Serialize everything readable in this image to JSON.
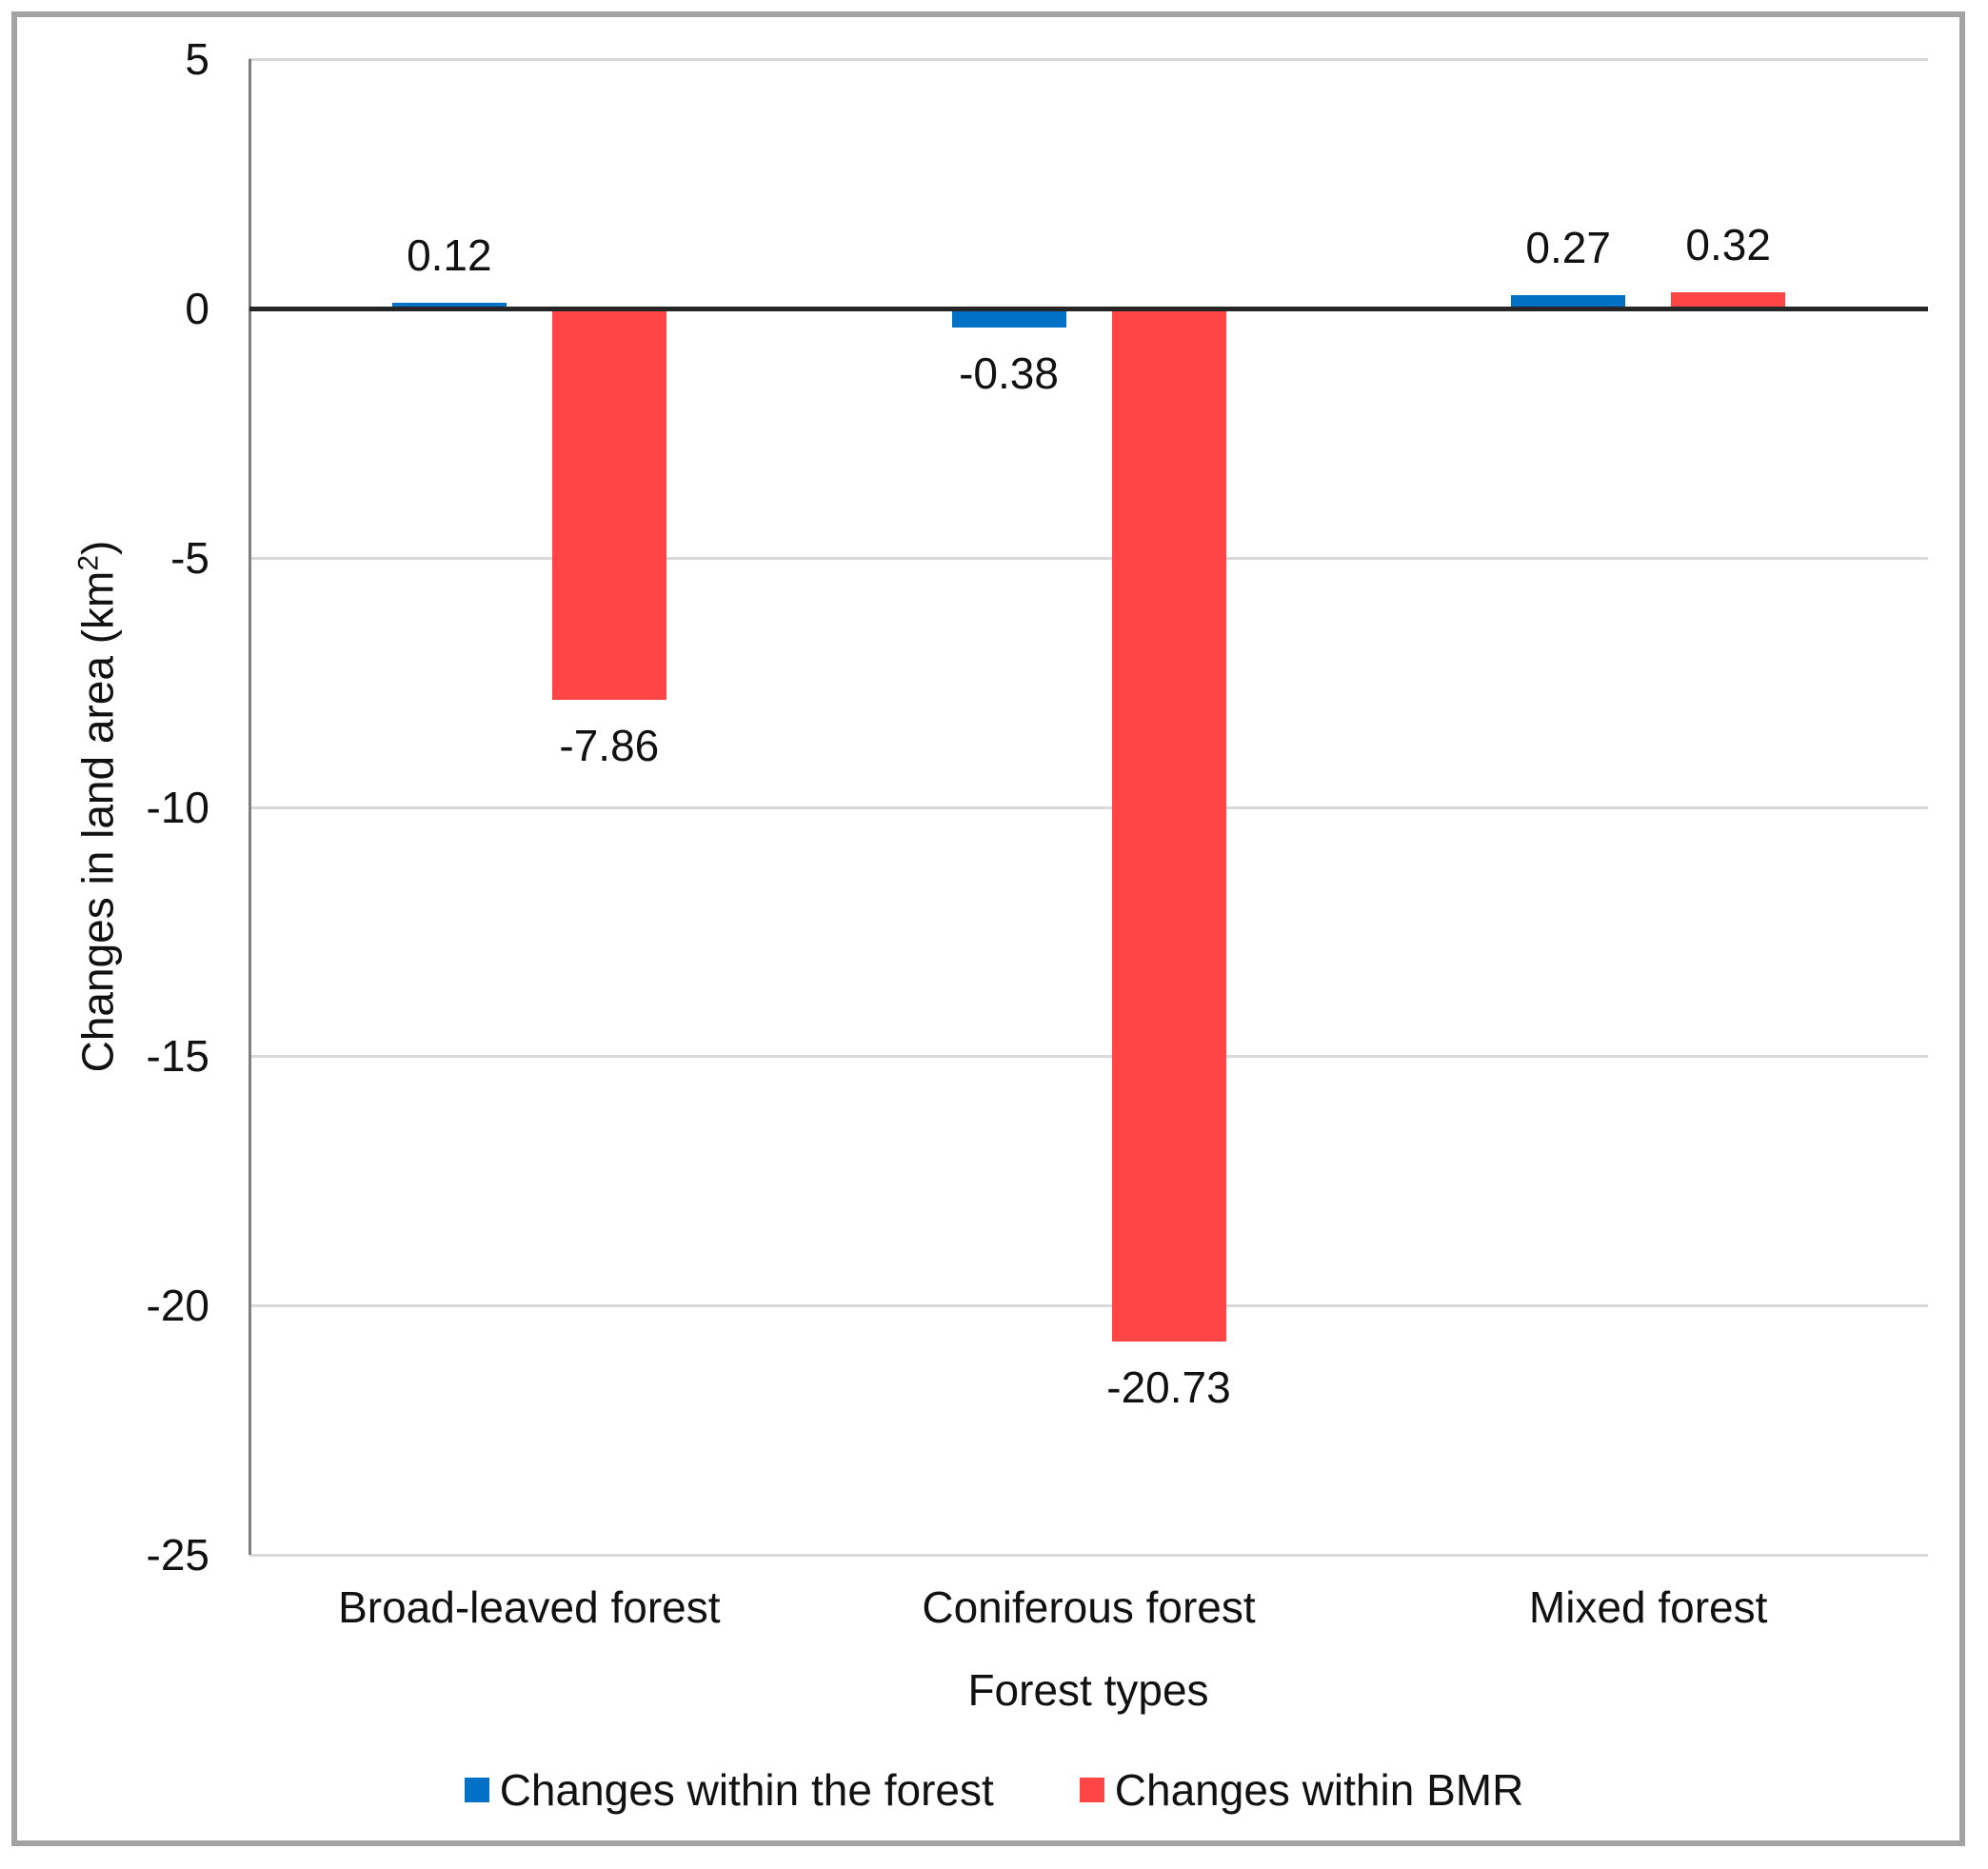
{
  "chart_data": {
    "type": "bar",
    "title": "",
    "categories": [
      "Broad-leaved forest",
      "Coniferous forest",
      "Mixed forest"
    ],
    "series": [
      {
        "name": "Changes within the forest",
        "color": "#0071c5",
        "values": [
          0.12,
          -0.38,
          0.27
        ],
        "labels": [
          "0.12",
          "-0.38",
          "0.27"
        ]
      },
      {
        "name": "Changes within BMR",
        "color": "#ff4545",
        "values": [
          -7.86,
          -20.73,
          0.32
        ],
        "labels": [
          "-7.86",
          "-20.73",
          "0.32"
        ]
      }
    ],
    "xlabel": "Forest types",
    "ylabel": {
      "prefix": "Changes in land area (km",
      "sup": "2",
      "suffix": ")"
    },
    "yticks": [
      "5",
      "0",
      "-5",
      "-10",
      "-15",
      "-20",
      "-25"
    ],
    "ytick_values": [
      5,
      0,
      -5,
      -10,
      -15,
      -20,
      -25
    ],
    "ylim": [
      -25,
      5
    ],
    "grid": true,
    "legend_position": "bottom"
  },
  "style": {
    "grid_color": "#d9d9d9",
    "axis_color": "#808080",
    "zero_line_color": "#262626",
    "frame_color": "#a3a3a3",
    "text_color": "#111111",
    "background": "#ffffff"
  }
}
